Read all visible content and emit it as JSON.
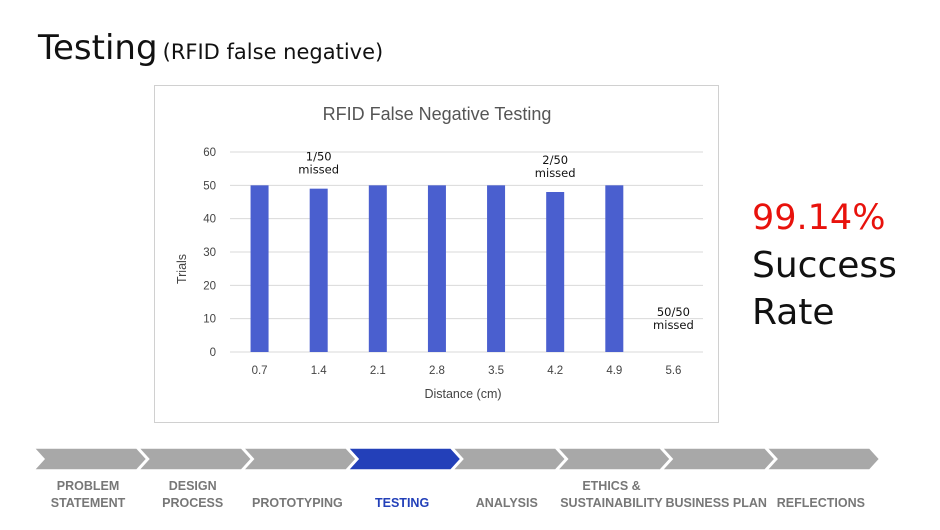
{
  "slide": {
    "title": "Testing",
    "subtitle": "(RFID false negative)"
  },
  "chart_data": {
    "type": "bar",
    "title": "RFID False  Negative Testing",
    "xlabel": "Distance (cm)",
    "ylabel": "Trials",
    "categories": [
      "0.7",
      "1.4",
      "2.1",
      "2.8",
      "3.5",
      "4.2",
      "4.9",
      "5.6"
    ],
    "values": [
      50,
      49,
      50,
      50,
      50,
      48,
      50,
      0
    ],
    "ylim": [
      0,
      60
    ],
    "yticks": [
      "0",
      "10",
      "20",
      "30",
      "40",
      "50",
      "60"
    ],
    "grid": true,
    "legend": "none",
    "bar_color": "#4a5fcf",
    "annotations": [
      {
        "category": "1.4",
        "lines": [
          "1/50",
          "missed"
        ]
      },
      {
        "category": "4.2",
        "lines": [
          "2/50",
          "missed"
        ]
      },
      {
        "category": "5.6",
        "lines": [
          "50/50",
          "missed"
        ]
      }
    ]
  },
  "stat": {
    "value": "99.14%",
    "line1": "Success",
    "line2": "Rate",
    "value_color": "#e8120c"
  },
  "nav": {
    "active_index": 3,
    "active_color": "#2340b9",
    "inactive_color": "#a8a8a8",
    "items": [
      {
        "line1": "PROBLEM",
        "line2": "STATEMENT"
      },
      {
        "line1": "DESIGN",
        "line2": "PROCESS"
      },
      {
        "line1": "",
        "line2": "PROTOTYPING"
      },
      {
        "line1": "",
        "line2": "TESTING"
      },
      {
        "line1": "",
        "line2": "ANALYSIS"
      },
      {
        "line1": "ETHICS &",
        "line2": "SUSTAINABILITY"
      },
      {
        "line1": "",
        "line2": "BUSINESS PLAN"
      },
      {
        "line1": "",
        "line2": "REFLECTIONS"
      }
    ]
  }
}
